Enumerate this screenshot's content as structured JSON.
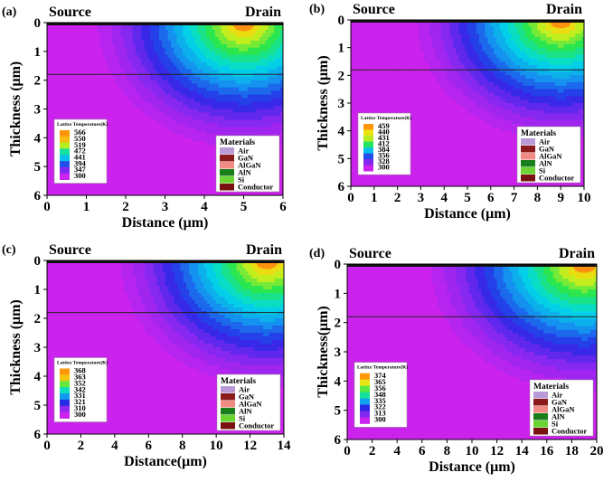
{
  "chart_data": [
    {
      "type": "heatmap",
      "panel_label": "(a)",
      "source_label": "Source",
      "drain_label": "Drain",
      "xlabel": "Distance (μm)",
      "ylabel": "Thickness (μm)",
      "x_ticks": [
        "0",
        "1",
        "2",
        "3",
        "4",
        "5",
        "6"
      ],
      "y_ticks": [
        "0",
        "1",
        "2",
        "3",
        "4",
        "5",
        "6"
      ],
      "xlim": [
        0,
        6
      ],
      "ylim": [
        0,
        6
      ],
      "y_inverted": true,
      "hotspot": {
        "x": 5,
        "y": 0
      },
      "colorbar_title": "Lattice Temperature(K)",
      "colorbar_values": [
        "566",
        "550",
        "519",
        "472",
        "441",
        "394",
        "347",
        "300"
      ],
      "tmax": 566,
      "tmin": 300,
      "materials_title": "Materials",
      "materials": [
        {
          "name": "Air",
          "color": "#b99ad6"
        },
        {
          "name": "GaN",
          "color": "#8b1a1a"
        },
        {
          "name": "AlGaN",
          "color": "#f08c84"
        },
        {
          "name": "AlN",
          "color": "#1a7f1a"
        },
        {
          "name": "Si",
          "color": "#6ad431"
        },
        {
          "name": "Conductor",
          "color": "#7a1111"
        }
      ]
    },
    {
      "type": "heatmap",
      "panel_label": "(b)",
      "source_label": "Source",
      "drain_label": "Drain",
      "xlabel": "Distance (μm)",
      "ylabel": "Thickness (μm)",
      "x_ticks": [
        "0",
        "1",
        "2",
        "3",
        "4",
        "5",
        "6",
        "7",
        "8",
        "9",
        "10"
      ],
      "y_ticks": [
        "0",
        "1",
        "2",
        "3",
        "4",
        "5",
        "6"
      ],
      "xlim": [
        0,
        10
      ],
      "ylim": [
        0,
        6
      ],
      "y_inverted": true,
      "hotspot": {
        "x": 9,
        "y": 0
      },
      "colorbar_title": "Lattice Temperature(K)",
      "colorbar_values": [
        "459",
        "440",
        "431",
        "412",
        "384",
        "356",
        "328",
        "300"
      ],
      "tmax": 459,
      "tmin": 300,
      "materials_title": "Materials",
      "materials": [
        {
          "name": "Air",
          "color": "#b99ad6"
        },
        {
          "name": "GaN",
          "color": "#8b1a1a"
        },
        {
          "name": "AlGaN",
          "color": "#f08c84"
        },
        {
          "name": "AlN",
          "color": "#1a7f1a"
        },
        {
          "name": "Si",
          "color": "#6ad431"
        },
        {
          "name": "Conductor",
          "color": "#7a1111"
        }
      ]
    },
    {
      "type": "heatmap",
      "panel_label": "(c)",
      "source_label": "Source",
      "drain_label": "Drain",
      "xlabel": "Distance(μm)",
      "ylabel": "Thickness (μm)",
      "x_ticks": [
        "0",
        "2",
        "4",
        "6",
        "8",
        "10",
        "12",
        "14"
      ],
      "y_ticks": [
        "0",
        "1",
        "2",
        "3",
        "4",
        "5",
        "6"
      ],
      "xlim": [
        0,
        14
      ],
      "ylim": [
        0,
        6
      ],
      "y_inverted": true,
      "hotspot": {
        "x": 13,
        "y": 0
      },
      "colorbar_title": "Lattice Temperature(K)",
      "colorbar_values": [
        "368",
        "363",
        "352",
        "342",
        "331",
        "321",
        "310",
        "300"
      ],
      "tmax": 368,
      "tmin": 300,
      "materials_title": "Materials",
      "materials": [
        {
          "name": "Air",
          "color": "#b99ad6"
        },
        {
          "name": "GaN",
          "color": "#8b1a1a"
        },
        {
          "name": "AlGaN",
          "color": "#f08c84"
        },
        {
          "name": "AlN",
          "color": "#1a7f1a"
        },
        {
          "name": "Si",
          "color": "#6ad431"
        },
        {
          "name": "Conductor",
          "color": "#7a1111"
        }
      ]
    },
    {
      "type": "heatmap",
      "panel_label": "(d)",
      "source_label": "Source",
      "drain_label": "Drain",
      "xlabel": "Distance (μm)",
      "ylabel": "Thickness(μm)",
      "x_ticks": [
        "0",
        "2",
        "4",
        "6",
        "8",
        "10",
        "12",
        "14",
        "16",
        "18",
        "20"
      ],
      "y_ticks": [
        "0",
        "1",
        "2",
        "3",
        "4",
        "5",
        "6"
      ],
      "xlim": [
        0,
        20
      ],
      "ylim": [
        0,
        6
      ],
      "y_inverted": true,
      "hotspot": {
        "x": 19,
        "y": 0
      },
      "colorbar_title": "Lattice Temperature(K)",
      "colorbar_values": [
        "374",
        "365",
        "356",
        "348",
        "335",
        "322",
        "313",
        "300"
      ],
      "tmax": 374,
      "tmin": 300,
      "materials_title": "Materials",
      "materials": [
        {
          "name": "Air",
          "color": "#b99ad6"
        },
        {
          "name": "GaN",
          "color": "#8b1a1a"
        },
        {
          "name": "AlGaN",
          "color": "#f08c84"
        },
        {
          "name": "AlN",
          "color": "#1a7f1a"
        },
        {
          "name": "Si",
          "color": "#6ad431"
        },
        {
          "name": "Conductor",
          "color": "#7a1111"
        }
      ]
    }
  ]
}
